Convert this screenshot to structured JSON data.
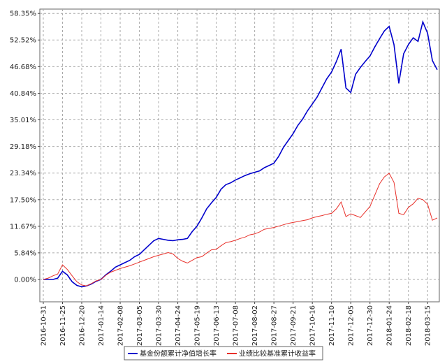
{
  "chart_data": {
    "type": "line",
    "categories": [
      "2016-10-31",
      null,
      null,
      null,
      "2016-11-25",
      null,
      null,
      null,
      "2016-12-20",
      null,
      null,
      null,
      "2017-01-14",
      null,
      null,
      null,
      "2017-02-08",
      null,
      null,
      null,
      "2017-03-05",
      null,
      null,
      null,
      "2017-03-30",
      null,
      null,
      null,
      "2017-04-24",
      null,
      null,
      null,
      "2017-05-19",
      null,
      null,
      null,
      "2017-06-13",
      null,
      null,
      null,
      "2017-07-08",
      null,
      null,
      null,
      "2017-08-02",
      null,
      null,
      null,
      "2017-08-27",
      null,
      null,
      null,
      "2017-09-21",
      null,
      null,
      null,
      "2017-10-16",
      null,
      null,
      null,
      "2017-11-10",
      null,
      null,
      null,
      "2017-12-05",
      null,
      null,
      null,
      "2017-12-30",
      null,
      null,
      null,
      "2018-01-24",
      null,
      null,
      null,
      "2018-02-18",
      null,
      null,
      null,
      "2018-03-15",
      null,
      null
    ],
    "series": [
      {
        "name": "基金份额累计净值增长率",
        "color": "#0000cc",
        "values": [
          0,
          0,
          0,
          0.3,
          1.8,
          1,
          -0.5,
          -1.3,
          -1.6,
          -1.4,
          -1,
          -0.4,
          0,
          1,
          1.8,
          2.7,
          3.2,
          3.7,
          4.2,
          5,
          5.5,
          6.5,
          7.5,
          8.5,
          9,
          8.8,
          8.6,
          8.5,
          8.7,
          8.8,
          9,
          10.5,
          11.7,
          13.5,
          15.5,
          16.8,
          18,
          19.8,
          20.8,
          21.2,
          21.8,
          22.3,
          22.8,
          23.2,
          23.5,
          23.8,
          24.5,
          25,
          25.5,
          27,
          29,
          30.5,
          32,
          33.8,
          35.2,
          37,
          38.5,
          40,
          42,
          44,
          45.5,
          47.8,
          50.5,
          42,
          41,
          45,
          46.5,
          47.8,
          49,
          51,
          52.8,
          54.5,
          55.5,
          51.5,
          43,
          49.5,
          51.5,
          53,
          52.2,
          56.5,
          54,
          48,
          46
        ]
      },
      {
        "name": "业绩比较基准累计收益率",
        "color": "#e8302a",
        "values": [
          0,
          0.3,
          0.8,
          1.2,
          3.2,
          2.2,
          0.8,
          -0.5,
          -1.2,
          -1.4,
          -0.9,
          -0.3,
          0,
          0.9,
          1.6,
          2,
          2.4,
          2.7,
          3,
          3.4,
          3.8,
          4.2,
          4.6,
          5,
          5.3,
          5.6,
          5.9,
          5.6,
          4.6,
          4,
          3.6,
          4.2,
          4.8,
          5,
          5.8,
          6.5,
          6.6,
          7.4,
          8.1,
          8.3,
          8.6,
          9,
          9.3,
          9.8,
          10,
          10.4,
          11,
          11.2,
          11.4,
          11.7,
          12,
          12.3,
          12.5,
          12.7,
          12.9,
          13.1,
          13.5,
          13.8,
          14,
          14.3,
          14.5,
          15.5,
          17,
          13.8,
          14.4,
          14,
          13.6,
          14.8,
          16,
          18.5,
          21,
          22.5,
          23.3,
          21.3,
          14.5,
          14.2,
          15.8,
          16.6,
          17.8,
          17.5,
          16.5,
          13,
          13.5
        ]
      }
    ],
    "ylim": [
      -4.9,
      59.3
    ],
    "yticks": [
      {
        "value": 0,
        "label": "0.00%"
      },
      {
        "value": 5.84,
        "label": "5.84%"
      },
      {
        "value": 11.67,
        "label": "11.67%"
      },
      {
        "value": 17.5,
        "label": "17.50%"
      },
      {
        "value": 23.34,
        "label": "23.34%"
      },
      {
        "value": 29.18,
        "label": "29.18%"
      },
      {
        "value": 35.01,
        "label": "35.01%"
      },
      {
        "value": 40.84,
        "label": "40.84%"
      },
      {
        "value": 46.68,
        "label": "46.68%"
      },
      {
        "value": 52.52,
        "label": "52.52%"
      },
      {
        "value": 58.35,
        "label": "58.35%"
      }
    ],
    "grid": true
  }
}
